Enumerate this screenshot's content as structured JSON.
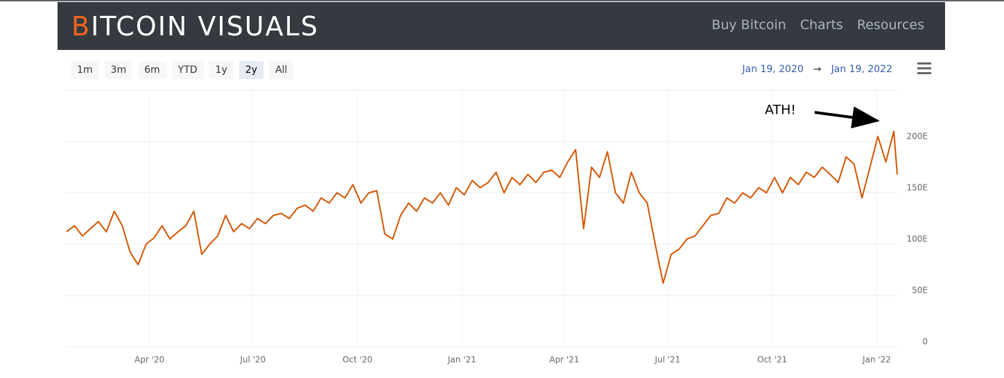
{
  "header": {
    "logo": "BITCOIN VISUALS",
    "nav": [
      "Buy Bitcoin",
      "Charts",
      "Resources"
    ]
  },
  "range_buttons": [
    "1m",
    "3m",
    "6m",
    "YTD",
    "1y",
    "2y",
    "All"
  ],
  "selected_range": "2y",
  "date_range": {
    "from": "Jan 19, 2020",
    "arrow": "→",
    "to": "Jan 19, 2022"
  },
  "chart_data": {
    "type": "line",
    "color": "#d35400",
    "grid": true,
    "annotation": "ATH!",
    "x": [
      "2020-01-19",
      "2020-01-26",
      "2020-02-02",
      "2020-02-09",
      "2020-02-16",
      "2020-02-23",
      "2020-03-01",
      "2020-03-08",
      "2020-03-15",
      "2020-03-22",
      "2020-03-29",
      "2020-04-05",
      "2020-04-12",
      "2020-04-19",
      "2020-04-26",
      "2020-05-03",
      "2020-05-10",
      "2020-05-17",
      "2020-05-24",
      "2020-05-31",
      "2020-06-07",
      "2020-06-14",
      "2020-06-21",
      "2020-06-28",
      "2020-07-05",
      "2020-07-12",
      "2020-07-19",
      "2020-07-26",
      "2020-08-02",
      "2020-08-09",
      "2020-08-16",
      "2020-08-23",
      "2020-08-30",
      "2020-09-06",
      "2020-09-13",
      "2020-09-20",
      "2020-09-27",
      "2020-10-04",
      "2020-10-11",
      "2020-10-18",
      "2020-10-25",
      "2020-11-01",
      "2020-11-08",
      "2020-11-15",
      "2020-11-22",
      "2020-11-29",
      "2020-12-06",
      "2020-12-13",
      "2020-12-20",
      "2020-12-27",
      "2021-01-03",
      "2021-01-10",
      "2021-01-17",
      "2021-01-24",
      "2021-01-31",
      "2021-02-07",
      "2021-02-14",
      "2021-02-21",
      "2021-02-28",
      "2021-03-07",
      "2021-03-14",
      "2021-03-21",
      "2021-03-28",
      "2021-04-04",
      "2021-04-11",
      "2021-04-18",
      "2021-04-25",
      "2021-05-02",
      "2021-05-09",
      "2021-05-16",
      "2021-05-23",
      "2021-05-30",
      "2021-06-06",
      "2021-06-13",
      "2021-06-20",
      "2021-06-27",
      "2021-07-04",
      "2021-07-11",
      "2021-07-18",
      "2021-07-25",
      "2021-08-01",
      "2021-08-08",
      "2021-08-15",
      "2021-08-22",
      "2021-08-29",
      "2021-09-05",
      "2021-09-12",
      "2021-09-19",
      "2021-09-26",
      "2021-10-03",
      "2021-10-10",
      "2021-10-17",
      "2021-10-24",
      "2021-10-31",
      "2021-11-07",
      "2021-11-14",
      "2021-11-21",
      "2021-11-28",
      "2021-12-05",
      "2021-12-12",
      "2021-12-19",
      "2021-12-26",
      "2022-01-02",
      "2022-01-09",
      "2022-01-16",
      "2022-01-19"
    ],
    "values": [
      112,
      118,
      108,
      115,
      122,
      112,
      132,
      118,
      92,
      80,
      100,
      106,
      118,
      105,
      112,
      118,
      132,
      90,
      100,
      108,
      128,
      112,
      120,
      115,
      125,
      120,
      128,
      130,
      125,
      135,
      138,
      132,
      145,
      140,
      150,
      145,
      158,
      140,
      150,
      152,
      110,
      105,
      128,
      140,
      132,
      145,
      140,
      150,
      138,
      155,
      148,
      162,
      155,
      160,
      170,
      150,
      165,
      158,
      168,
      160,
      170,
      172,
      165,
      180,
      192,
      115,
      175,
      165,
      190,
      150,
      140,
      170,
      150,
      140,
      100,
      62,
      90,
      95,
      105,
      108,
      118,
      128,
      130,
      145,
      140,
      150,
      145,
      155,
      150,
      165,
      150,
      165,
      158,
      170,
      165,
      175,
      168,
      160,
      185,
      178,
      145,
      175,
      205,
      180,
      210,
      168
    ],
    "xlim": [
      "2020-01-19",
      "2022-01-19"
    ],
    "xticks": [
      {
        "value": "2020-04-01",
        "label": "Apr '20"
      },
      {
        "value": "2020-07-01",
        "label": "Jul '20"
      },
      {
        "value": "2020-10-01",
        "label": "Oct '20"
      },
      {
        "value": "2021-01-01",
        "label": "Jan '21"
      },
      {
        "value": "2021-04-01",
        "label": "Apr '21"
      },
      {
        "value": "2021-07-01",
        "label": "Jul '21"
      },
      {
        "value": "2021-10-01",
        "label": "Oct '21"
      },
      {
        "value": "2022-01-01",
        "label": "Jan '22"
      }
    ],
    "ylim": [
      0,
      250
    ],
    "yticks": [
      0,
      {
        "value": 50,
        "label": "50E"
      },
      {
        "value": 100,
        "label": "100E"
      },
      {
        "value": 150,
        "label": "150E"
      },
      {
        "value": 200,
        "label": "200E"
      }
    ]
  }
}
